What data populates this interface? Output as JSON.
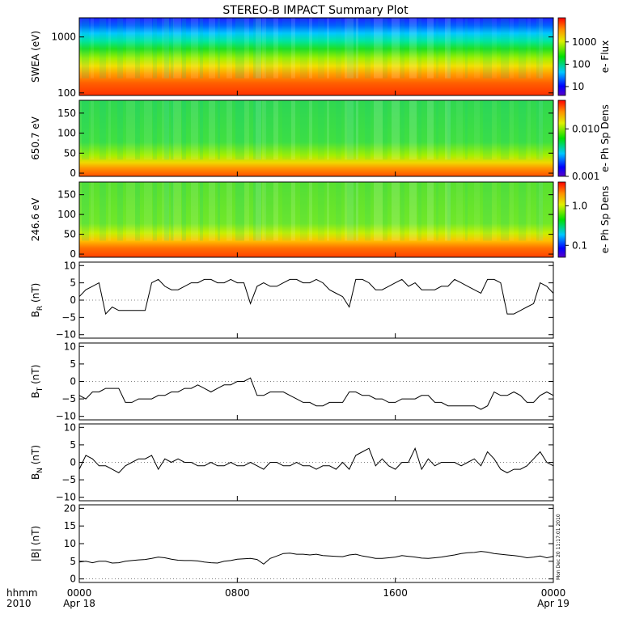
{
  "figure": {
    "title": "STEREO-B IMPACT Summary Plot",
    "time_axis": {
      "label_line1": "hhmm",
      "label_line2": "2010",
      "ticks": [
        {
          "t": 0,
          "label": "0000",
          "sublabel": "Apr 18"
        },
        {
          "t": 480,
          "label": "0800",
          "sublabel": ""
        },
        {
          "t": 960,
          "label": "1600",
          "sublabel": ""
        },
        {
          "t": 1440,
          "label": "0000",
          "sublabel": "Apr 19"
        }
      ]
    },
    "stamp": "Mon Dec 20 11:17:01 2010"
  },
  "chart_data": [
    {
      "type": "heatmap",
      "ylabel": "SWEA (eV)",
      "yscale": "log",
      "ylim": [
        90,
        2200
      ],
      "yticks": [
        {
          "v": 100,
          "label": "100"
        },
        {
          "v": 1000,
          "label": "1000"
        }
      ],
      "colorbar": {
        "label": "e- Flux",
        "scale": "log",
        "range": [
          4,
          12000
        ],
        "ticks": [
          {
            "v": 10,
            "label": "10"
          },
          {
            "v": 100,
            "label": "100"
          },
          {
            "v": 1000,
            "label": "1000"
          }
        ]
      },
      "description_bands": [
        {
          "range_eV": [
            90,
            300
          ],
          "flux_level": "high"
        },
        {
          "range_eV": [
            300,
            700
          ],
          "flux_level": "medium"
        },
        {
          "range_eV": [
            700,
            2200
          ],
          "flux_level": "low"
        }
      ]
    },
    {
      "type": "heatmap",
      "ylabel": "650.7 eV",
      "ylim": [
        -8,
        182
      ],
      "yticks": [
        {
          "v": 0,
          "label": "0"
        },
        {
          "v": 50,
          "label": "50"
        },
        {
          "v": 100,
          "label": "100"
        },
        {
          "v": 150,
          "label": "150"
        }
      ],
      "colorbar": {
        "label": "e- Ph Sp Dens",
        "scale": "log",
        "range": [
          0.001,
          0.04
        ],
        "ticks": [
          {
            "v": 0.001,
            "label": "0.001"
          },
          {
            "v": 0.01,
            "label": "0.010"
          }
        ]
      }
    },
    {
      "type": "heatmap",
      "ylabel": "246.6 eV",
      "ylim": [
        -8,
        182
      ],
      "yticks": [
        {
          "v": 0,
          "label": "0"
        },
        {
          "v": 50,
          "label": "50"
        },
        {
          "v": 100,
          "label": "100"
        },
        {
          "v": 150,
          "label": "150"
        }
      ],
      "colorbar": {
        "label": "e- Ph Sp Dens",
        "scale": "log",
        "range": [
          0.05,
          4
        ],
        "ticks": [
          {
            "v": 0.1,
            "label": "0.1"
          },
          {
            "v": 1,
            "label": "1.0"
          }
        ]
      }
    },
    {
      "type": "line",
      "ylabel_main": "B",
      "ylabel_sub": "R",
      "ylabel_unit": " (nT)",
      "ylim": [
        -11,
        11
      ],
      "yticks": [
        {
          "v": -10,
          "label": "−10"
        },
        {
          "v": -5,
          "label": "−5"
        },
        {
          "v": 0,
          "label": "0"
        },
        {
          "v": 5,
          "label": "5"
        },
        {
          "v": 10,
          "label": "10"
        }
      ],
      "x": [
        0,
        20,
        40,
        60,
        80,
        100,
        120,
        140,
        160,
        180,
        200,
        220,
        240,
        260,
        280,
        300,
        320,
        340,
        360,
        380,
        400,
        420,
        440,
        460,
        480,
        500,
        520,
        540,
        560,
        580,
        600,
        620,
        640,
        660,
        680,
        700,
        720,
        740,
        760,
        780,
        800,
        820,
        840,
        860,
        880,
        900,
        920,
        940,
        960,
        980,
        1000,
        1020,
        1040,
        1060,
        1080,
        1100,
        1120,
        1140,
        1160,
        1180,
        1200,
        1220,
        1240,
        1260,
        1280,
        1300,
        1320,
        1340,
        1360,
        1380,
        1400,
        1420,
        1440
      ],
      "y": [
        1,
        3,
        4,
        5,
        -4,
        -2,
        -3,
        -3,
        -3,
        -3,
        -3,
        5,
        6,
        4,
        3,
        3,
        4,
        5,
        5,
        6,
        6,
        5,
        5,
        6,
        5,
        5,
        -1,
        4,
        5,
        4,
        4,
        5,
        6,
        6,
        5,
        5,
        6,
        5,
        3,
        2,
        1,
        -2,
        6,
        6,
        5,
        3,
        3,
        4,
        5,
        6,
        4,
        5,
        3,
        3,
        3,
        4,
        4,
        6,
        5,
        4,
        3,
        2,
        6,
        6,
        5,
        -4,
        -4,
        -3,
        -2,
        -1,
        5,
        4,
        2
      ]
    },
    {
      "type": "line",
      "ylabel_main": "B",
      "ylabel_sub": "T",
      "ylabel_unit": " (nT)",
      "ylim": [
        -11,
        11
      ],
      "yticks": [
        {
          "v": -10,
          "label": "−10"
        },
        {
          "v": -5,
          "label": "−5"
        },
        {
          "v": 0,
          "label": "0"
        },
        {
          "v": 5,
          "label": "5"
        },
        {
          "v": 10,
          "label": "10"
        }
      ],
      "x": [
        0,
        20,
        40,
        60,
        80,
        100,
        120,
        140,
        160,
        180,
        200,
        220,
        240,
        260,
        280,
        300,
        320,
        340,
        360,
        380,
        400,
        420,
        440,
        460,
        480,
        500,
        520,
        540,
        560,
        580,
        600,
        620,
        640,
        660,
        680,
        700,
        720,
        740,
        760,
        780,
        800,
        820,
        840,
        860,
        880,
        900,
        920,
        940,
        960,
        980,
        1000,
        1020,
        1040,
        1060,
        1080,
        1100,
        1120,
        1140,
        1160,
        1180,
        1200,
        1220,
        1240,
        1260,
        1280,
        1300,
        1320,
        1340,
        1360,
        1380,
        1400,
        1420,
        1440
      ],
      "y": [
        -4,
        -5,
        -3,
        -3,
        -2,
        -2,
        -2,
        -6,
        -6,
        -5,
        -5,
        -5,
        -4,
        -4,
        -3,
        -3,
        -2,
        -2,
        -1,
        -2,
        -3,
        -2,
        -1,
        -1,
        0,
        0,
        1,
        -4,
        -4,
        -3,
        -3,
        -3,
        -4,
        -5,
        -6,
        -6,
        -7,
        -7,
        -6,
        -6,
        -6,
        -3,
        -3,
        -4,
        -4,
        -5,
        -5,
        -6,
        -6,
        -5,
        -5,
        -5,
        -4,
        -4,
        -6,
        -6,
        -7,
        -7,
        -7,
        -7,
        -7,
        -8,
        -7,
        -3,
        -4,
        -4,
        -3,
        -4,
        -6,
        -6,
        -4,
        -3,
        -4
      ]
    },
    {
      "type": "line",
      "ylabel_main": "B",
      "ylabel_sub": "N",
      "ylabel_unit": " (nT)",
      "ylim": [
        -11,
        11
      ],
      "yticks": [
        {
          "v": -10,
          "label": "−10"
        },
        {
          "v": -5,
          "label": "−5"
        },
        {
          "v": 0,
          "label": "0"
        },
        {
          "v": 5,
          "label": "5"
        },
        {
          "v": 10,
          "label": "10"
        }
      ],
      "x": [
        0,
        20,
        40,
        60,
        80,
        100,
        120,
        140,
        160,
        180,
        200,
        220,
        240,
        260,
        280,
        300,
        320,
        340,
        360,
        380,
        400,
        420,
        440,
        460,
        480,
        500,
        520,
        540,
        560,
        580,
        600,
        620,
        640,
        660,
        680,
        700,
        720,
        740,
        760,
        780,
        800,
        820,
        840,
        860,
        880,
        900,
        920,
        940,
        960,
        980,
        1000,
        1020,
        1040,
        1060,
        1080,
        1100,
        1120,
        1140,
        1160,
        1180,
        1200,
        1220,
        1240,
        1260,
        1280,
        1300,
        1320,
        1340,
        1360,
        1380,
        1400,
        1420,
        1440
      ],
      "y": [
        -2,
        2,
        1,
        -1,
        -1,
        -2,
        -3,
        -1,
        0,
        1,
        1,
        2,
        -2,
        1,
        0,
        1,
        0,
        0,
        -1,
        -1,
        0,
        -1,
        -1,
        0,
        -1,
        -1,
        0,
        -1,
        -2,
        0,
        0,
        -1,
        -1,
        0,
        -1,
        -1,
        -2,
        -1,
        -1,
        -2,
        0,
        -2,
        2,
        3,
        4,
        -1,
        1,
        -1,
        -2,
        0,
        0,
        4,
        -2,
        1,
        -1,
        0,
        0,
        0,
        -1,
        0,
        1,
        -1,
        3,
        1,
        -2,
        -3,
        -2,
        -2,
        -1,
        1,
        3,
        0,
        -1
      ]
    },
    {
      "type": "line",
      "ylabel_main": "|B| (nT)",
      "ylim": [
        -1,
        21
      ],
      "yticks": [
        {
          "v": 0,
          "label": "0"
        },
        {
          "v": 5,
          "label": "5"
        },
        {
          "v": 10,
          "label": "10"
        },
        {
          "v": 15,
          "label": "15"
        },
        {
          "v": 20,
          "label": "20"
        }
      ],
      "x": [
        0,
        20,
        40,
        60,
        80,
        100,
        120,
        140,
        160,
        180,
        200,
        220,
        240,
        260,
        280,
        300,
        320,
        340,
        360,
        380,
        400,
        420,
        440,
        460,
        480,
        500,
        520,
        540,
        560,
        580,
        600,
        620,
        640,
        660,
        680,
        700,
        720,
        740,
        760,
        780,
        800,
        820,
        840,
        860,
        880,
        900,
        920,
        940,
        960,
        980,
        1000,
        1020,
        1040,
        1060,
        1080,
        1100,
        1120,
        1140,
        1160,
        1180,
        1200,
        1220,
        1240,
        1260,
        1280,
        1300,
        1320,
        1340,
        1360,
        1380,
        1400,
        1420,
        1440
      ],
      "y": [
        4.8,
        5,
        4.6,
        5,
        5,
        4.5,
        4.6,
        5,
        5.2,
        5.4,
        5.5,
        5.8,
        6.2,
        6,
        5.6,
        5.3,
        5.2,
        5.2,
        5.1,
        4.8,
        4.6,
        4.5,
        5,
        5.2,
        5.6,
        5.7,
        5.8,
        5.5,
        4.2,
        5.8,
        6.5,
        7.2,
        7.3,
        7,
        7,
        6.8,
        7,
        6.6,
        6.5,
        6.4,
        6.3,
        6.8,
        7,
        6.5,
        6.2,
        5.8,
        5.8,
        6,
        6.2,
        6.6,
        6.4,
        6.2,
        5.9,
        5.8,
        6,
        6.2,
        6.5,
        6.8,
        7.2,
        7.4,
        7.5,
        7.8,
        7.6,
        7.2,
        7,
        6.8,
        6.6,
        6.4,
        6,
        6.2,
        6.5,
        6,
        6.4
      ]
    }
  ]
}
